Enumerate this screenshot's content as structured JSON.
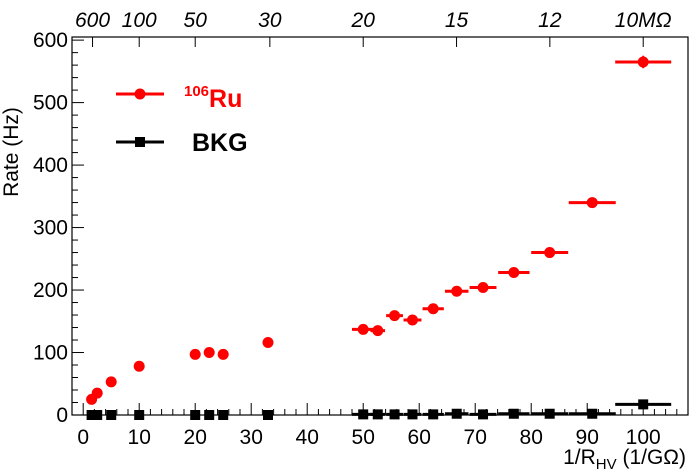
{
  "chart_data": {
    "type": "scatter",
    "xlabel": {
      "main": "1/R",
      "sub": "HV",
      "unit": " (1/GΩ)"
    },
    "ylabel": "Rate (Hz)",
    "xlim": [
      -2,
      108
    ],
    "ylim": [
      0,
      605
    ],
    "x_ticks": [
      0,
      10,
      20,
      30,
      40,
      50,
      60,
      70,
      80,
      90,
      100
    ],
    "y_ticks": [
      0,
      100,
      200,
      300,
      400,
      500,
      600
    ],
    "top_axis": {
      "labels": [
        {
          "x": 1.6667,
          "label": "600"
        },
        {
          "x": 10,
          "label": "100"
        },
        {
          "x": 20,
          "label": "50"
        },
        {
          "x": 33.33,
          "label": "30"
        },
        {
          "x": 50,
          "label": "20"
        },
        {
          "x": 66.67,
          "label": "15"
        },
        {
          "x": 83.33,
          "label": "12"
        },
        {
          "x": 100,
          "label": "10MΩ"
        }
      ]
    },
    "legend": {
      "placement": "top-left",
      "entries": [
        {
          "label_sup": "106",
          "label_main": "Ru",
          "color": "#ff0000",
          "marker": "circle"
        },
        {
          "label_sup": "",
          "label_main": "BKG",
          "color": "#000000",
          "marker": "square"
        }
      ]
    },
    "series": [
      {
        "color": "#ff0000",
        "marker": "circle",
        "points": [
          {
            "x": 1.5,
            "y": 25,
            "xerr": 0,
            "yerr": 0
          },
          {
            "x": 2.5,
            "y": 35,
            "xerr": 0,
            "yerr": 0
          },
          {
            "x": 5,
            "y": 53,
            "xerr": 0,
            "yerr": 0
          },
          {
            "x": 10,
            "y": 78,
            "xerr": 0,
            "yerr": 0
          },
          {
            "x": 20,
            "y": 97,
            "xerr": 0,
            "yerr": 0
          },
          {
            "x": 22.5,
            "y": 100,
            "xerr": 0,
            "yerr": 0
          },
          {
            "x": 25,
            "y": 97,
            "xerr": 0,
            "yerr": 0
          },
          {
            "x": 33,
            "y": 116,
            "xerr": 0,
            "yerr": 0
          },
          {
            "x": 50,
            "y": 137,
            "xerr": 2,
            "yerr": 0
          },
          {
            "x": 52.6,
            "y": 135,
            "xerr": 1.3,
            "yerr": 0
          },
          {
            "x": 55.6,
            "y": 159,
            "xerr": 1.5,
            "yerr": 0
          },
          {
            "x": 58.8,
            "y": 152,
            "xerr": 1.6,
            "yerr": 0
          },
          {
            "x": 62.5,
            "y": 170,
            "xerr": 1.9,
            "yerr": 0
          },
          {
            "x": 66.7,
            "y": 198,
            "xerr": 2.1,
            "yerr": 0
          },
          {
            "x": 71.4,
            "y": 204,
            "xerr": 2.4,
            "yerr": 0
          },
          {
            "x": 76.9,
            "y": 228,
            "xerr": 2.8,
            "yerr": 0
          },
          {
            "x": 83.3,
            "y": 260,
            "xerr": 3.3,
            "yerr": 0
          },
          {
            "x": 90.9,
            "y": 340,
            "xerr": 4.2,
            "yerr": 0
          },
          {
            "x": 100,
            "y": 565,
            "xerr": 5,
            "yerr": 10
          }
        ]
      },
      {
        "color": "#000000",
        "marker": "square",
        "points": [
          {
            "x": 1.5,
            "y": 0,
            "xerr": 0
          },
          {
            "x": 2.5,
            "y": 0,
            "xerr": 0
          },
          {
            "x": 5,
            "y": 0,
            "xerr": 0
          },
          {
            "x": 10,
            "y": 0,
            "xerr": 0
          },
          {
            "x": 20,
            "y": 0,
            "xerr": 0
          },
          {
            "x": 22.5,
            "y": 0,
            "xerr": 0
          },
          {
            "x": 25,
            "y": 0,
            "xerr": 0
          },
          {
            "x": 33,
            "y": 0,
            "xerr": 0
          },
          {
            "x": 50,
            "y": 1,
            "xerr": 2
          },
          {
            "x": 52.6,
            "y": 1,
            "xerr": 1.3
          },
          {
            "x": 55.6,
            "y": 1,
            "xerr": 1.5
          },
          {
            "x": 58.8,
            "y": 1,
            "xerr": 1.6
          },
          {
            "x": 62.5,
            "y": 1,
            "xerr": 1.9
          },
          {
            "x": 66.7,
            "y": 2,
            "xerr": 2.1
          },
          {
            "x": 71.4,
            "y": 1,
            "xerr": 2.4
          },
          {
            "x": 76.9,
            "y": 2,
            "xerr": 2.8
          },
          {
            "x": 83.3,
            "y": 2,
            "xerr": 3.3
          },
          {
            "x": 90.9,
            "y": 2,
            "xerr": 4.2
          },
          {
            "x": 100,
            "y": 17,
            "xerr": 5
          }
        ]
      }
    ]
  }
}
